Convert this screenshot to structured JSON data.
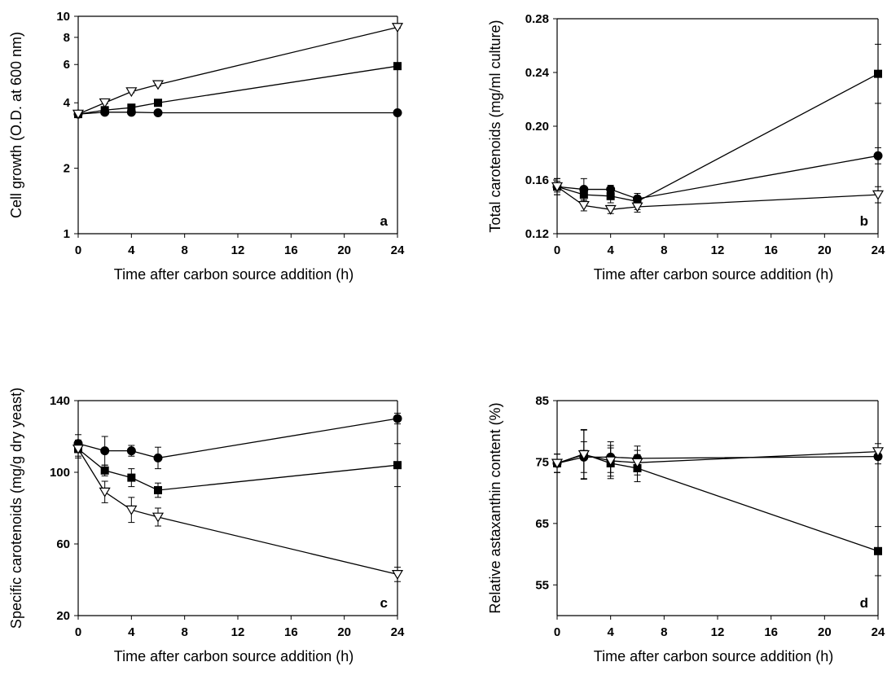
{
  "chart_data": [
    {
      "type": "line",
      "panel_label": "a",
      "xlabel": "Time after carbon source addition (h)",
      "ylabel": "Cell growth (O.D. at 600 nm)",
      "y_scale": "log",
      "xlim": [
        0,
        24
      ],
      "ylim": [
        1,
        10
      ],
      "x_ticks": [
        0,
        4,
        8,
        12,
        16,
        20,
        24
      ],
      "y_ticks": [
        1,
        2,
        4,
        6,
        8,
        10
      ],
      "x_tick_labels": [
        "0",
        "4",
        "8",
        "12",
        "16",
        "20",
        "24"
      ],
      "y_tick_labels": [
        "1",
        "2",
        "4",
        "6",
        "8",
        "10"
      ],
      "series": [
        {
          "marker": "circle",
          "x": [
            0,
            2,
            4,
            6,
            24
          ],
          "y": [
            3.55,
            3.62,
            3.62,
            3.6,
            3.6
          ],
          "err": [
            0.05,
            0.06,
            0.08,
            0.05,
            0.04
          ]
        },
        {
          "marker": "square",
          "x": [
            0,
            2,
            4,
            6,
            24
          ],
          "y": [
            3.55,
            3.7,
            3.8,
            4.0,
            5.9
          ],
          "err": [
            0.05,
            0.08,
            0.12,
            0.06,
            0.08
          ]
        },
        {
          "marker": "triangle-down-open",
          "x": [
            0,
            2,
            4,
            6,
            24
          ],
          "y": [
            3.55,
            4.0,
            4.5,
            4.85,
            8.9
          ],
          "err": [
            0.04,
            0.04,
            0.05,
            0.05,
            0.08
          ]
        }
      ]
    },
    {
      "type": "line",
      "panel_label": "b",
      "xlabel": "Time after carbon source addition (h)",
      "ylabel": "Total carotenoids (mg/ml culture)",
      "y_scale": "linear",
      "xlim": [
        0,
        24
      ],
      "ylim": [
        0.12,
        0.28
      ],
      "x_ticks": [
        0,
        4,
        8,
        12,
        16,
        20,
        24
      ],
      "y_ticks": [
        0.12,
        0.16,
        0.2,
        0.24,
        0.28
      ],
      "x_tick_labels": [
        "0",
        "4",
        "8",
        "12",
        "16",
        "20",
        "24"
      ],
      "y_tick_labels": [
        "0.12",
        "0.16",
        "0.20",
        "0.24",
        "0.28"
      ],
      "series": [
        {
          "marker": "circle",
          "x": [
            0,
            2,
            4,
            6,
            24
          ],
          "y": [
            0.155,
            0.153,
            0.153,
            0.146,
            0.178
          ],
          "err": [
            0.006,
            0.008,
            0.003,
            0.004,
            0.006
          ]
        },
        {
          "marker": "square",
          "x": [
            0,
            2,
            4,
            6,
            24
          ],
          "y": [
            0.155,
            0.149,
            0.148,
            0.144,
            0.239
          ],
          "err": [
            0.006,
            0.005,
            0.005,
            0.006,
            0.022
          ]
        },
        {
          "marker": "triangle-down-open",
          "x": [
            0,
            2,
            4,
            6,
            24
          ],
          "y": [
            0.155,
            0.141,
            0.138,
            0.14,
            0.149
          ],
          "err": [
            0.004,
            0.004,
            0.003,
            0.004,
            0.006
          ]
        }
      ]
    },
    {
      "type": "line",
      "panel_label": "c",
      "xlabel": "Time after carbon source addition (h)",
      "ylabel": "Specific carotenoids (mg/g dry yeast)",
      "y_scale": "linear",
      "xlim": [
        0,
        24
      ],
      "ylim": [
        20,
        140
      ],
      "x_ticks": [
        0,
        4,
        8,
        12,
        16,
        20,
        24
      ],
      "y_ticks": [
        20,
        60,
        100,
        140
      ],
      "x_tick_labels": [
        "0",
        "4",
        "8",
        "12",
        "16",
        "20",
        "24"
      ],
      "y_tick_labels": [
        "20",
        "60",
        "100",
        "140"
      ],
      "series": [
        {
          "marker": "circle",
          "x": [
            0,
            2,
            4,
            6,
            24
          ],
          "y": [
            116,
            112,
            112,
            108,
            130
          ],
          "err": [
            5,
            8,
            3,
            6,
            3
          ]
        },
        {
          "marker": "square",
          "x": [
            0,
            2,
            4,
            6,
            24
          ],
          "y": [
            113,
            101,
            97,
            90,
            104
          ],
          "err": [
            5,
            3,
            5,
            4,
            12
          ]
        },
        {
          "marker": "triangle-down-open",
          "x": [
            0,
            2,
            4,
            6,
            24
          ],
          "y": [
            113,
            89,
            79,
            75,
            43
          ],
          "err": [
            4,
            6,
            7,
            5,
            4
          ]
        }
      ]
    },
    {
      "type": "line",
      "panel_label": "d",
      "xlabel": "Time after carbon source addition (h)",
      "ylabel": "Relative astaxanthin content (%)",
      "y_scale": "linear",
      "xlim": [
        0,
        24
      ],
      "ylim": [
        50,
        85
      ],
      "x_ticks": [
        0,
        4,
        8,
        12,
        16,
        20,
        24
      ],
      "y_ticks": [
        55,
        65,
        75,
        85
      ],
      "x_tick_labels": [
        "0",
        "4",
        "8",
        "12",
        "16",
        "20",
        "24"
      ],
      "y_tick_labels": [
        "55",
        "65",
        "75",
        "85"
      ],
      "series": [
        {
          "marker": "circle",
          "x": [
            0,
            2,
            4,
            6,
            24
          ],
          "y": [
            74.8,
            75.8,
            75.8,
            75.6,
            75.9
          ],
          "err": [
            1.5,
            2.5,
            2.5,
            2.0,
            1.2
          ]
        },
        {
          "marker": "square",
          "x": [
            0,
            2,
            4,
            6,
            24
          ],
          "y": [
            74.8,
            76.3,
            74.8,
            74.0,
            60.5
          ],
          "err": [
            1.5,
            4.0,
            2.5,
            2.2,
            4.0
          ]
        },
        {
          "marker": "triangle-down-open",
          "x": [
            0,
            2,
            4,
            6,
            24
          ],
          "y": [
            74.8,
            76.2,
            75.2,
            74.9,
            76.7
          ],
          "err": [
            1.5,
            4.0,
            2.5,
            2.0,
            1.3
          ]
        }
      ]
    }
  ]
}
